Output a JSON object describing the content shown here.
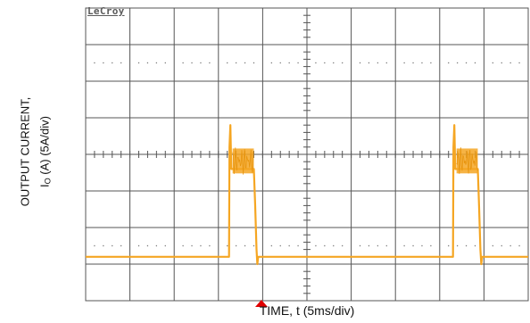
{
  "brand": "LeCroy",
  "colors": {
    "trace": "#f5a623",
    "grid": "#555555",
    "marker": "#e00000"
  },
  "axes": {
    "ylabel_line1": "OUTPUT CURRENT,",
    "ylabel_var": "I",
    "ylabel_sub": "O",
    "ylabel_rest": " (A) (5A/div)",
    "xlabel": "TIME, t (5ms/div)"
  },
  "chart_data": {
    "type": "line",
    "title": "",
    "xlabel": "TIME, t (5ms/div)",
    "ylabel": "OUTPUT CURRENT, IO (A) (5A/div)",
    "xlim": [
      0,
      50
    ],
    "ylim": [
      -25,
      15
    ],
    "x_scale": "5 ms/div",
    "y_scale": "5 A/div",
    "grid": true,
    "trigger_marker_x": 20,
    "series": [
      {
        "x": [
          0,
          16.2,
          16.25,
          16.35,
          16.45,
          16.6,
          19.0,
          19.15,
          19.3,
          19.4,
          19.5,
          41.5,
          41.55,
          41.65,
          41.75,
          41.9,
          44.3,
          44.45,
          44.6,
          44.7,
          44.8,
          50
        ],
        "y": [
          -19,
          -19,
          -4,
          -1,
          -7,
          -7,
          -7,
          -12,
          -18,
          -20,
          -19,
          -19,
          -4,
          -1,
          -7,
          -7,
          -7,
          -12,
          -18,
          -20,
          -19,
          -19
        ]
      }
    ]
  }
}
